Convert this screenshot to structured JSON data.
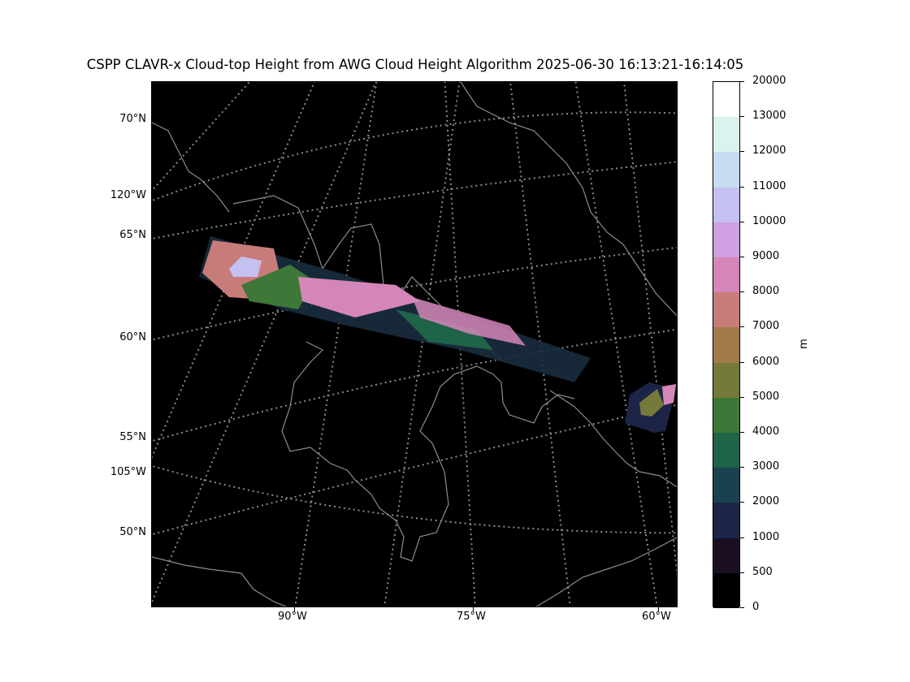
{
  "title": "CSPP CLAVR-x Cloud-top Height from AWG Cloud Height Algorithm 2025-06-30 16:13:21-16:14:05",
  "map": {
    "background_color": "#000000",
    "graticule_color": "#8c8c8c",
    "coastline_color": "#8c8c8c",
    "lat_labels": [
      "70°N",
      "65°N",
      "60°N",
      "55°N",
      "50°N"
    ],
    "lon_side_labels": [
      "120°W",
      "105°W"
    ],
    "lon_bottom_labels": [
      "90°W",
      "75°W",
      "60°W"
    ],
    "swath_description_values": {
      "satellite_pass_start": "2025-06-30 16:13:21",
      "satellite_pass_end": "16:14:05"
    }
  },
  "colorbar": {
    "unit": "m",
    "tick_labels": [
      "20000",
      "13000",
      "12000",
      "11000",
      "10000",
      "9000",
      "8000",
      "7000",
      "6000",
      "5000",
      "4000",
      "3000",
      "2000",
      "1000",
      "500",
      "0"
    ],
    "colors_top_to_bottom": [
      "#ffffff",
      "#dcf2ef",
      "#c6dcf2",
      "#c4c0f1",
      "#cf9fe1",
      "#d486b8",
      "#c77c7a",
      "#a17a4b",
      "#75793a",
      "#3e7737",
      "#1f6349",
      "#1a4150",
      "#1c2447",
      "#1a0f22",
      "#000000"
    ]
  }
}
